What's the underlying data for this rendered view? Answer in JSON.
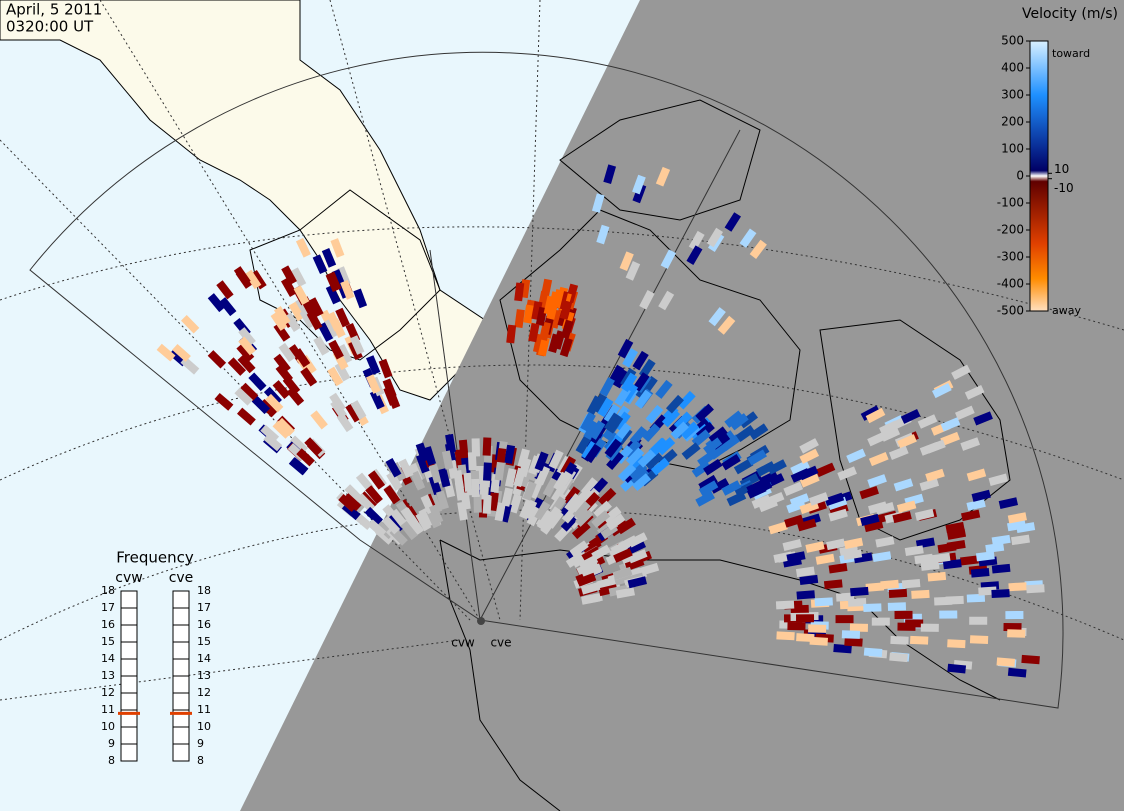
{
  "header": {
    "date": "April, 5 2011",
    "time": "0320:00 UT"
  },
  "colorbar": {
    "title": "Velocity (m/s)",
    "range": [
      -500,
      500
    ],
    "ticks": [
      500,
      400,
      300,
      200,
      100,
      0,
      -100,
      -200,
      -300,
      -400,
      -500
    ],
    "inner_ticks": [
      10,
      -10
    ],
    "toward": "toward",
    "away": "away"
  },
  "frequency": {
    "title": "Frequency",
    "range": [
      8,
      18
    ],
    "ticks": [
      18,
      17,
      16,
      15,
      14,
      13,
      12,
      11,
      10,
      9,
      8
    ],
    "radars": [
      {
        "name": "cvw",
        "value": 10.8
      },
      {
        "name": "cve",
        "value": 10.8
      }
    ]
  },
  "sites": [
    "cvw",
    "cve"
  ]
}
